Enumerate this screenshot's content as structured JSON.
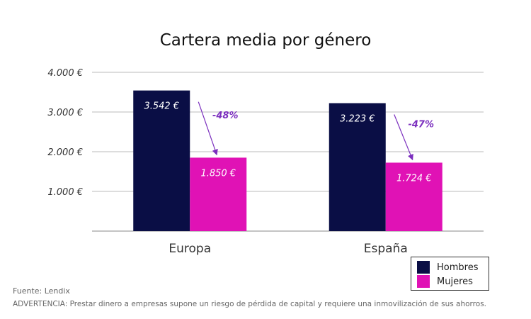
{
  "chart_data": {
    "type": "bar",
    "title": "Cartera media por género",
    "categories": [
      "Europa",
      "España"
    ],
    "series": [
      {
        "name": "Hombres",
        "values": [
          3542,
          3223
        ],
        "labels": [
          "3.542 €",
          "3.223 €"
        ],
        "color": "#0a0e45"
      },
      {
        "name": "Mujeres",
        "values": [
          1850,
          1724
        ],
        "labels": [
          "1.850 €",
          "1.724 €"
        ],
        "color": "#e012b5"
      }
    ],
    "ylim": [
      0,
      4000
    ],
    "yticks": [
      {
        "value": 1000,
        "label": "1.000 €"
      },
      {
        "value": 2000,
        "label": "2.000 €"
      },
      {
        "value": 3000,
        "label": "3.000 €"
      },
      {
        "value": 4000,
        "label": "4.000 €"
      }
    ],
    "annotations": [
      {
        "category": "Europa",
        "text": "-48%"
      },
      {
        "category": "España",
        "text": "-47%"
      }
    ],
    "grid": true,
    "legend_position": "bottom-right",
    "annotation_color": "#7b2fbe"
  },
  "footer": {
    "source": "Fuente: Lendix",
    "warning": "ADVERTENCIA: Prestar dinero a empresas supone un riesgo de pérdida de capital y requiere una inmovilización de sus ahorros."
  }
}
